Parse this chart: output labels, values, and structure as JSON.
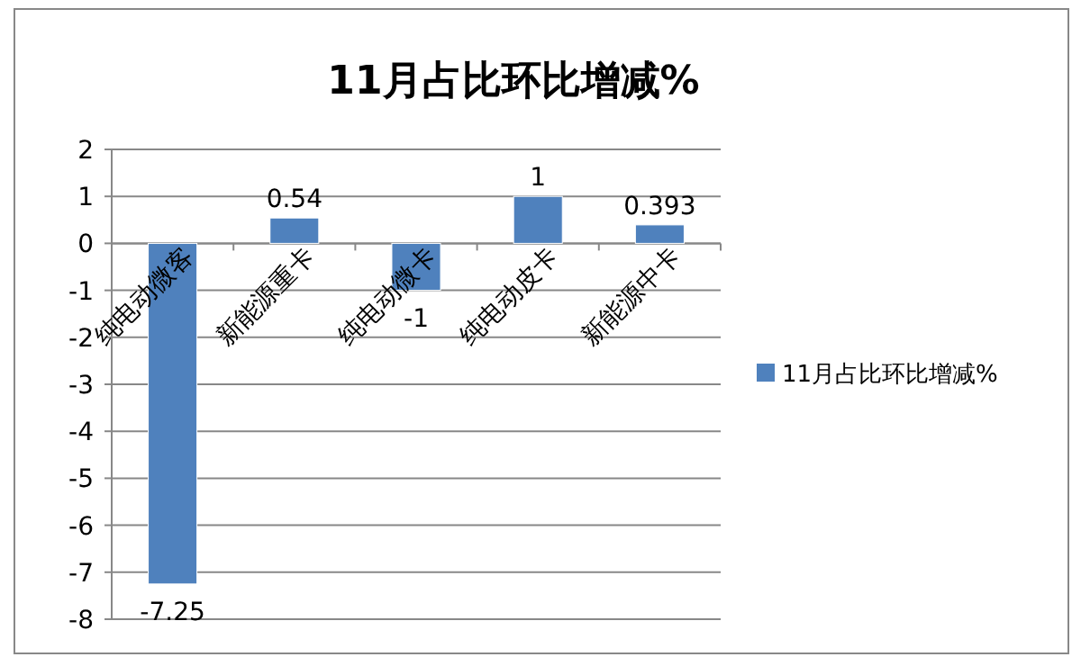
{
  "chart_data": {
    "type": "bar",
    "title": "11月占比环比增减%",
    "categories": [
      "纯电动微客",
      "新能源重卡",
      "纯电动微卡",
      "纯电动皮卡",
      "新能源中卡"
    ],
    "series": [
      {
        "name": "11月占比环比增减%",
        "color": "#4f81bd",
        "values": [
          -7.25,
          0.54,
          -1,
          1,
          0.393
        ]
      }
    ],
    "ylim": [
      -8,
      2
    ],
    "yticks": [
      -8,
      -7,
      -6,
      -5,
      -4,
      -3,
      -2,
      -1,
      0,
      1,
      2
    ],
    "grid": "y",
    "legend": "right",
    "data_labels": true
  }
}
